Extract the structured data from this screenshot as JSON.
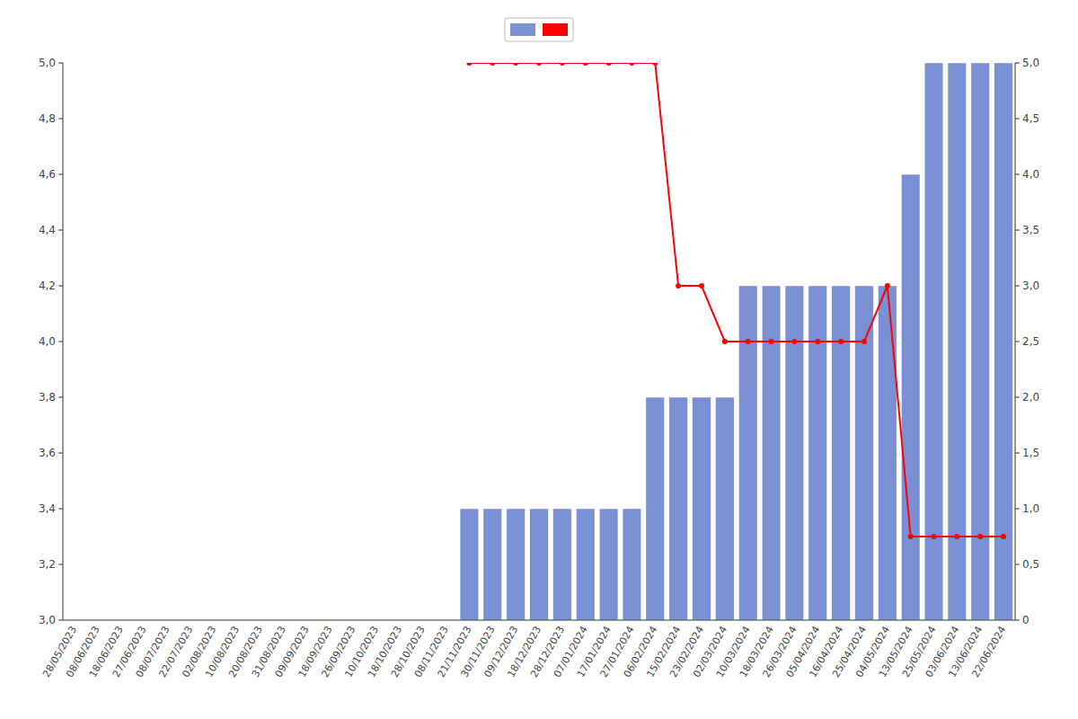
{
  "chart_data": {
    "type": "bar",
    "categories": [
      "28/05/2023",
      "08/06/2023",
      "18/06/2023",
      "27/06/2023",
      "08/07/2023",
      "22/07/2023",
      "02/08/2023",
      "10/08/2023",
      "20/08/2023",
      "31/08/2023",
      "09/09/2023",
      "18/09/2023",
      "26/09/2023",
      "10/10/2023",
      "18/10/2023",
      "28/10/2023",
      "08/11/2023",
      "21/11/2023",
      "30/11/2023",
      "09/12/2023",
      "18/12/2023",
      "28/12/2023",
      "07/01/2024",
      "17/01/2024",
      "27/01/2024",
      "06/02/2024",
      "15/02/2024",
      "23/02/2024",
      "02/03/2024",
      "10/03/2024",
      "18/03/2024",
      "26/03/2024",
      "05/04/2024",
      "16/04/2024",
      "25/04/2024",
      "04/05/2024",
      "13/05/2024",
      "25/05/2024",
      "03/06/2024",
      "13/06/2024",
      "22/06/2024"
    ],
    "series": [
      {
        "type": "bar",
        "color": "#7B8FD4",
        "values": [
          null,
          null,
          null,
          null,
          null,
          null,
          null,
          null,
          null,
          null,
          null,
          null,
          null,
          null,
          null,
          null,
          null,
          3.4,
          3.4,
          3.4,
          3.4,
          3.4,
          3.4,
          3.4,
          3.4,
          3.8,
          3.8,
          3.8,
          3.8,
          4.2,
          4.2,
          4.2,
          4.2,
          4.2,
          4.2,
          4.2,
          4.6,
          5.0,
          5.0,
          5.0,
          5.0
        ]
      },
      {
        "type": "line",
        "color": "#FF0000",
        "marker": "circle",
        "values": [
          null,
          null,
          null,
          null,
          null,
          null,
          null,
          null,
          null,
          null,
          null,
          null,
          null,
          null,
          null,
          null,
          null,
          5.0,
          5.0,
          5.0,
          5.0,
          5.0,
          5.0,
          5.0,
          5.0,
          5.0,
          4.2,
          4.2,
          4.0,
          4.0,
          4.0,
          4.0,
          4.0,
          4.0,
          4.0,
          4.2,
          3.3,
          3.3,
          3.3,
          3.3,
          3.3
        ]
      }
    ],
    "ylim": [
      3.0,
      5.0
    ],
    "yticks": [
      {
        "value": 3.0,
        "label": "3,0"
      },
      {
        "value": 3.2,
        "label": "3,2"
      },
      {
        "value": 3.4,
        "label": "3,4"
      },
      {
        "value": 3.6,
        "label": "3,6"
      },
      {
        "value": 3.8,
        "label": "3,8"
      },
      {
        "value": 4.0,
        "label": "4,0"
      },
      {
        "value": 4.2,
        "label": "4,2"
      },
      {
        "value": 4.4,
        "label": "4,4"
      },
      {
        "value": 4.6,
        "label": "4,6"
      },
      {
        "value": 4.8,
        "label": "4,8"
      },
      {
        "value": 5.0,
        "label": "5,0"
      }
    ],
    "y2lim": [
      0,
      5.0
    ],
    "y2ticks": [
      0,
      {
        "value": 0.5,
        "label": "0,5"
      },
      {
        "value": 1.0,
        "label": "1,0"
      },
      {
        "value": 1.5,
        "label": "1,5"
      },
      {
        "value": 2.0,
        "label": "2,0"
      },
      {
        "value": 2.5,
        "label": "2,5"
      },
      {
        "value": 3.0,
        "label": "3,0"
      },
      {
        "value": 3.5,
        "label": "3,5"
      },
      {
        "value": 4.0,
        "label": "4,0"
      },
      {
        "value": 4.5,
        "label": "4,5"
      },
      {
        "value": 5.0,
        "label": "5,0"
      }
    ],
    "grid": false,
    "legend": "top"
  }
}
